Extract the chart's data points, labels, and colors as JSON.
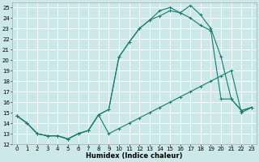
{
  "xlabel": "Humidex (Indice chaleur)",
  "bg_color": "#cce8e8",
  "grid_color": "#ffffff",
  "line_color": "#1a7a6e",
  "xlim": [
    -0.5,
    23.5
  ],
  "ylim": [
    12,
    25.5
  ],
  "xticks": [
    0,
    1,
    2,
    3,
    4,
    5,
    6,
    7,
    8,
    9,
    10,
    11,
    12,
    13,
    14,
    15,
    16,
    17,
    18,
    19,
    20,
    21,
    22,
    23
  ],
  "yticks": [
    12,
    13,
    14,
    15,
    16,
    17,
    18,
    19,
    20,
    21,
    22,
    23,
    24,
    25
  ],
  "line1_x": [
    0,
    1,
    2,
    3,
    4,
    5,
    6,
    7,
    8,
    9,
    10,
    11,
    12,
    13,
    14,
    15,
    16,
    17,
    18,
    19,
    20,
    21,
    22,
    23
  ],
  "line1_y": [
    14.7,
    14.0,
    13.0,
    12.8,
    12.8,
    12.5,
    13.0,
    13.3,
    14.8,
    13.0,
    13.5,
    14.0,
    14.5,
    15.0,
    15.5,
    16.0,
    16.5,
    17.0,
    17.5,
    18.0,
    18.5,
    19.0,
    15.0,
    15.5
  ],
  "line2_x": [
    0,
    1,
    2,
    3,
    4,
    5,
    6,
    7,
    8,
    9,
    10,
    11,
    12,
    13,
    14,
    15,
    16,
    17,
    18,
    19,
    20,
    21,
    22,
    23
  ],
  "line2_y": [
    14.7,
    14.0,
    13.0,
    12.8,
    12.8,
    12.5,
    13.0,
    13.3,
    14.8,
    15.3,
    20.3,
    21.7,
    23.0,
    23.8,
    24.2,
    24.7,
    24.5,
    24.0,
    23.3,
    22.8,
    16.3,
    16.3,
    15.2,
    15.5
  ],
  "line3_x": [
    0,
    1,
    2,
    3,
    4,
    5,
    6,
    7,
    8,
    9,
    10,
    11,
    12,
    13,
    14,
    15,
    16,
    17,
    18,
    19,
    20,
    21,
    22,
    23
  ],
  "line3_y": [
    14.7,
    14.0,
    13.0,
    12.8,
    12.8,
    12.5,
    13.0,
    13.3,
    14.8,
    15.3,
    20.3,
    21.7,
    23.0,
    23.8,
    24.7,
    25.0,
    24.5,
    25.2,
    24.3,
    23.0,
    20.3,
    16.3,
    15.2,
    15.5
  ]
}
